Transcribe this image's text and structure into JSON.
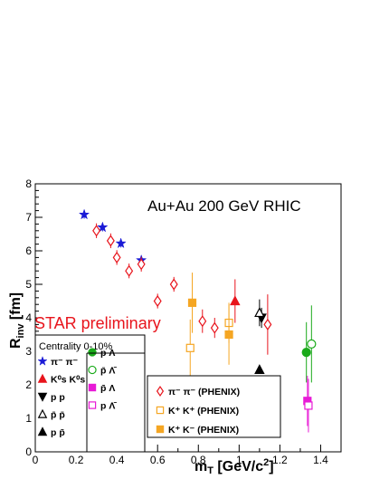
{
  "chart_data": {
    "type": "scatter",
    "title": "Au+Au  200 GeV RHIC",
    "annotation": "STAR preliminary",
    "xlabel": "m_T [GeV/c^2]",
    "ylabel": "R_inv [fm]",
    "xlim": [
      0,
      1.5
    ],
    "ylim": [
      0,
      8
    ],
    "xticks": [
      "0",
      "0.2",
      "0.4",
      "0.6",
      "0.8",
      "1",
      "1.2",
      "1.4"
    ],
    "yticks": [
      "0",
      "1",
      "2",
      "3",
      "4",
      "5",
      "6",
      "7",
      "8"
    ],
    "grid": false,
    "legend_title": "Centrality 0-10%",
    "legend_star": [
      {
        "label": "π⁻ π⁻",
        "marker": "star",
        "color": "#1a1ad6"
      },
      {
        "label": "K⁰s K⁰s",
        "marker": "triangle-up",
        "color": "#e8141c"
      },
      {
        "label": "p p",
        "marker": "triangle-down",
        "color": "#000000"
      },
      {
        "label": "p̄ p̄",
        "marker": "triangle-up-open",
        "color": "#000000"
      },
      {
        "label": "p p̄",
        "marker": "triangle-up",
        "color": "#000000"
      },
      {
        "label": "p Λ",
        "marker": "circle",
        "color": "#1aaa1a"
      },
      {
        "label": "p̄ Λ̄",
        "marker": "circle-open",
        "color": "#1aaa1a"
      },
      {
        "label": "p̄ Λ",
        "marker": "square",
        "color": "#e81ad6"
      },
      {
        "label": "p Λ̄",
        "marker": "square-open",
        "color": "#e81ad6"
      }
    ],
    "legend_phenix": [
      {
        "label": "π⁻ π⁻ (PHENIX)",
        "marker": "diamond-open",
        "color": "#e8141c"
      },
      {
        "label": "K⁺ K⁺ (PHENIX)",
        "marker": "square-open",
        "color": "#f5a623"
      },
      {
        "label": "K⁺ K⁻ (PHENIX)",
        "marker": "square",
        "color": "#f5a623"
      }
    ],
    "series": [
      {
        "name": "π⁻ π⁻",
        "marker": "star",
        "color": "#1a1ad6",
        "x": [
          0.24,
          0.33,
          0.42,
          0.52
        ],
        "y": [
          7.08,
          6.7,
          6.22,
          5.72
        ],
        "err": [
          0.12,
          0.12,
          0.12,
          0.12
        ]
      },
      {
        "name": "π⁻ π⁻ (PHENIX)",
        "marker": "diamond-open",
        "color": "#e8141c",
        "x": [
          0.3,
          0.37,
          0.4,
          0.46,
          0.52,
          0.6,
          0.68,
          0.82,
          0.88,
          1.14
        ],
        "y": [
          6.6,
          6.3,
          5.8,
          5.4,
          5.6,
          4.5,
          5.0,
          3.9,
          3.7,
          3.8
        ],
        "err": [
          0.22,
          0.22,
          0.22,
          0.22,
          0.22,
          0.22,
          0.22,
          0.35,
          0.3,
          0.9
        ]
      },
      {
        "name": "K⁰s K⁰s",
        "marker": "triangle-up",
        "color": "#e8141c",
        "x": [
          0.98
        ],
        "y": [
          4.5
        ],
        "err": [
          0.65
        ]
      },
      {
        "name": "K⁺ K⁺ (PHENIX)",
        "marker": "square-open",
        "color": "#f5a623",
        "x": [
          0.76,
          0.95
        ],
        "y": [
          3.1,
          3.85
        ],
        "err": [
          0.85,
          0.6
        ]
      },
      {
        "name": "K⁺ K⁻ (PHENIX)",
        "marker": "square",
        "color": "#f5a623",
        "x": [
          0.77,
          0.95
        ],
        "y": [
          4.45,
          3.5
        ],
        "err": [
          0.9,
          0.9
        ]
      },
      {
        "name": "p p",
        "marker": "triangle-down",
        "color": "#000000",
        "x": [
          1.11
        ],
        "y": [
          4.0
        ],
        "err": [
          0.3
        ]
      },
      {
        "name": "p̄ p̄",
        "marker": "triangle-up-open",
        "color": "#000000",
        "x": [
          1.1
        ],
        "y": [
          4.15
        ],
        "err": [
          0.4
        ]
      },
      {
        "name": "p p̄",
        "marker": "triangle-up",
        "color": "#000000",
        "x": [
          1.1
        ],
        "y": [
          2.45
        ],
        "err": [
          0.12
        ]
      },
      {
        "name": "p Λ",
        "marker": "circle",
        "color": "#1aaa1a",
        "x": [
          1.33
        ],
        "y": [
          2.97
        ],
        "err": [
          0.9
        ]
      },
      {
        "name": "p̄ Λ̄",
        "marker": "circle-open",
        "color": "#1aaa1a",
        "x": [
          1.355
        ],
        "y": [
          3.22
        ],
        "err": [
          1.15
        ]
      },
      {
        "name": "p̄ Λ",
        "marker": "square",
        "color": "#e81ad6",
        "x": [
          1.335
        ],
        "y": [
          1.52
        ],
        "err": [
          0.75
        ]
      },
      {
        "name": "p Λ̄",
        "marker": "square-open",
        "color": "#e81ad6",
        "x": [
          1.34
        ],
        "y": [
          1.38
        ],
        "err": [
          0.8
        ]
      }
    ]
  }
}
